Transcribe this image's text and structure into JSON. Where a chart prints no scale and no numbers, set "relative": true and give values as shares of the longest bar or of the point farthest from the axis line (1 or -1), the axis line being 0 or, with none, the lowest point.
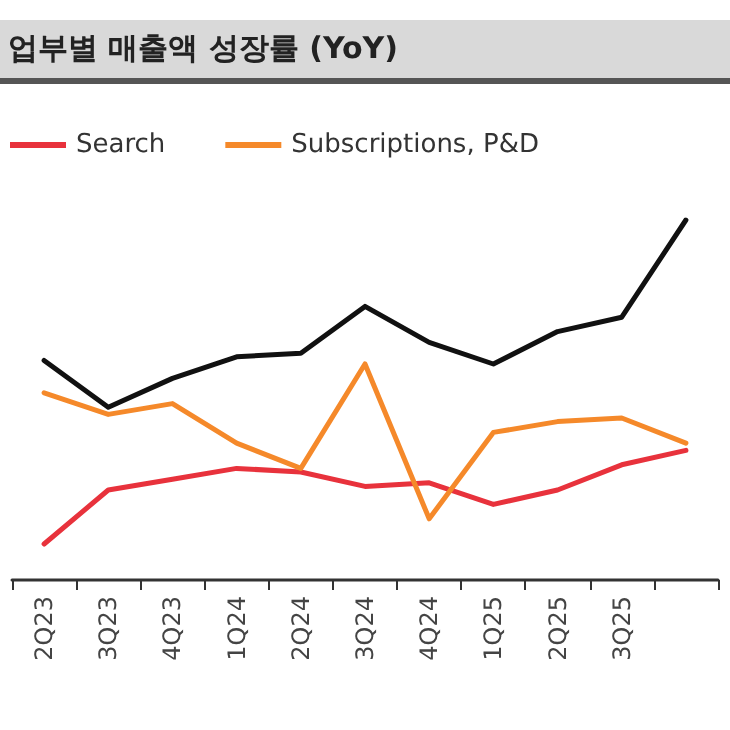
{
  "chart_data": {
    "type": "line",
    "title": "업부별 매출액 성장률 (YoY)",
    "relative": true,
    "legend": "top left",
    "grid": false,
    "marker": "none",
    "line_style": "solid",
    "categories": [
      "2Q23",
      "3Q23",
      "4Q23",
      "1Q24",
      "2Q24",
      "3Q24",
      "4Q24",
      "1Q25",
      "2Q25",
      "3Q25",
      null
    ],
    "series": [
      {
        "name": "Search",
        "color": "#e8323c",
        "values": [
          0.1,
          0.25,
          0.28,
          0.31,
          0.3,
          0.26,
          0.27,
          0.21,
          0.25,
          0.32,
          0.36
        ]
      },
      {
        "name": "Subscriptions, P&D",
        "color": "#f5892a",
        "values": [
          0.52,
          0.46,
          0.49,
          0.38,
          0.31,
          0.6,
          0.17,
          0.41,
          0.44,
          0.45,
          0.38
        ]
      },
      {
        "color": "#111111",
        "values": [
          0.61,
          0.48,
          0.56,
          0.62,
          0.63,
          0.76,
          0.66,
          0.6,
          0.69,
          0.73,
          1
        ]
      }
    ]
  }
}
